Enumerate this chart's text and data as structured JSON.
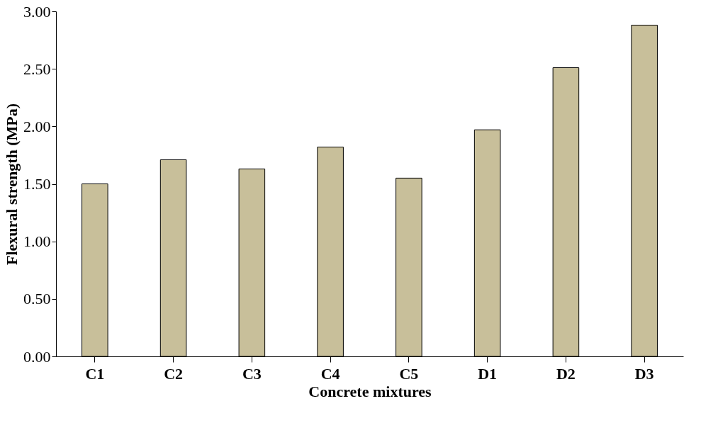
{
  "chart_data": {
    "type": "bar",
    "xlabel": "Concrete mixtures",
    "ylabel": "Flexural strength (MPa)",
    "categories": [
      "C1",
      "C2",
      "C3",
      "C4",
      "C5",
      "D1",
      "D2",
      "D3"
    ],
    "values": [
      1.5,
      1.71,
      1.63,
      1.82,
      1.55,
      1.97,
      2.51,
      2.88
    ],
    "color": "#c8bf9a",
    "ylim": [
      0,
      3
    ],
    "yticks": [
      {
        "value": 0,
        "label": "0.00"
      },
      {
        "value": 0.5,
        "label": "0.50"
      },
      {
        "value": 1,
        "label": "1.00"
      },
      {
        "value": 1.5,
        "label": "1.50"
      },
      {
        "value": 2,
        "label": "2.00"
      },
      {
        "value": 2.5,
        "label": "2.50"
      },
      {
        "value": 3,
        "label": "3.00"
      }
    ],
    "grid": false
  }
}
